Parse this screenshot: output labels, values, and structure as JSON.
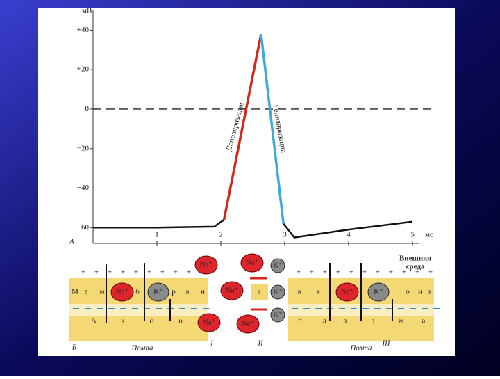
{
  "chart_data": {
    "type": "line",
    "axis_unit": "мВ",
    "x_unit": "мс",
    "panel_label": "А",
    "x": [
      0,
      1,
      1.9,
      2.05,
      2.63,
      2.98,
      3.15,
      4,
      5
    ],
    "series": [
      {
        "color": "#111111",
        "values": [
          -60,
          -60,
          -59.5,
          -56,
          null,
          -58,
          -65,
          -61,
          -57
        ]
      },
      {
        "name": "Деполяризация",
        "color": "#d8261c",
        "values": [
          null,
          null,
          null,
          -56,
          38,
          null,
          null,
          null,
          null
        ]
      },
      {
        "name": "Реполяризация",
        "color": "#3fa9d8",
        "values": [
          null,
          null,
          null,
          null,
          38,
          -58,
          null,
          null,
          null
        ]
      }
    ],
    "xlim": [
      0,
      5
    ],
    "ylim": [
      -68,
      50
    ],
    "xticks": [
      1,
      2,
      3,
      4,
      5
    ],
    "yticks": [
      {
        "value": 40,
        "label": "+40"
      },
      {
        "value": 20,
        "label": "+20"
      },
      0,
      {
        "value": -20,
        "label": "−20"
      },
      {
        "value": -40,
        "label": "−40"
      },
      {
        "value": -60,
        "label": "−60"
      }
    ],
    "reference_line": 0
  },
  "diagram": {
    "panel_label": "Б",
    "outside_label_1": "Внешняя",
    "outside_label_2": "среда",
    "na": "Na⁺",
    "k": "K⁺",
    "left_pump": "Помпа",
    "right_pump": "Помпа",
    "stage_1": "I",
    "stage_2": "II",
    "stage_3": "III",
    "top_left": [
      "М",
      "е",
      "м",
      "б",
      "р",
      "а",
      "н"
    ],
    "top_mid": "а",
    "top_right": [
      "а",
      "к",
      "с",
      "о",
      "н",
      "а"
    ],
    "bottom_left": [
      "А",
      "к",
      "с",
      "о"
    ],
    "bottom_right": [
      "п",
      "л",
      "а",
      "з",
      "м",
      "а"
    ]
  }
}
